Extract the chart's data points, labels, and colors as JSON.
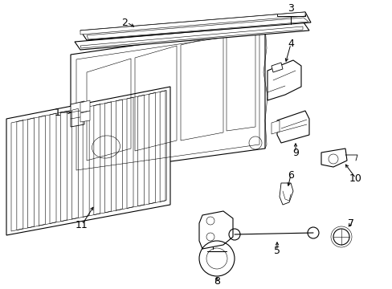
{
  "bg_color": "#ffffff",
  "line_color": "#000000",
  "fig_width": 4.89,
  "fig_height": 3.6,
  "dpi": 100,
  "lw": 0.8,
  "lw_thin": 0.4,
  "lw_med": 0.6
}
